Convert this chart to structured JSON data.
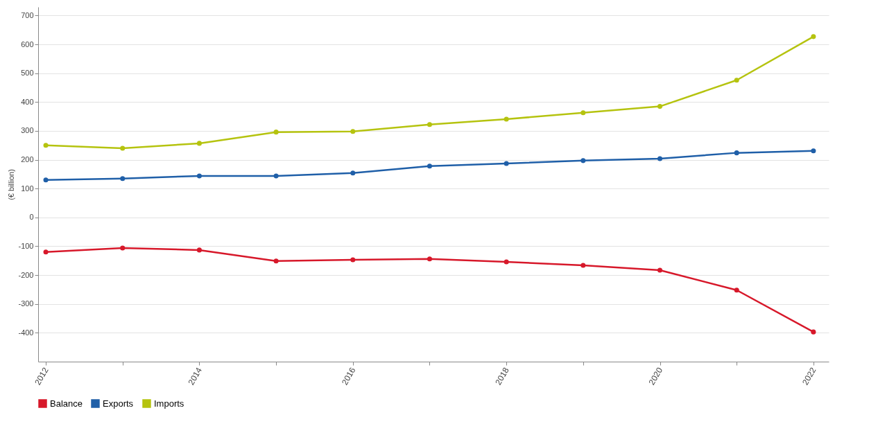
{
  "chart_data": {
    "type": "line",
    "ylabel": "(€ billion)",
    "x": [
      2012,
      2013,
      2014,
      2015,
      2016,
      2017,
      2018,
      2019,
      2020,
      2021,
      2022
    ],
    "series": [
      {
        "name": "Balance",
        "color": "#d7182a",
        "values": [
          -120,
          -106,
          -113,
          -151,
          -147,
          -144,
          -154,
          -166,
          -183,
          -252,
          -397
        ]
      },
      {
        "name": "Exports",
        "color": "#1f5fa8",
        "values": [
          130,
          135,
          144,
          144,
          154,
          178,
          187,
          197,
          204,
          224,
          231
        ]
      },
      {
        "name": "Imports",
        "color": "#b5c30f",
        "values": [
          250,
          240,
          257,
          296,
          298,
          322,
          341,
          363,
          385,
          476,
          627
        ]
      }
    ],
    "xlim": [
      2011.9,
      2022.2
    ],
    "xticks": [
      2012,
      {
        "value": 2013,
        "label": null
      },
      2014,
      {
        "value": 2015,
        "label": null
      },
      2016,
      {
        "value": 2017,
        "label": null
      },
      2018,
      {
        "value": 2019,
        "label": null
      },
      2020,
      {
        "value": 2021,
        "label": null
      },
      2022
    ],
    "ylim": [
      -500,
      730
    ],
    "yticks": [
      -400,
      -300,
      -200,
      -100,
      0,
      100,
      200,
      300,
      400,
      500,
      600,
      700
    ],
    "grid": "y",
    "legend": "bottom",
    "marker": "circle",
    "line_style": "solid"
  }
}
